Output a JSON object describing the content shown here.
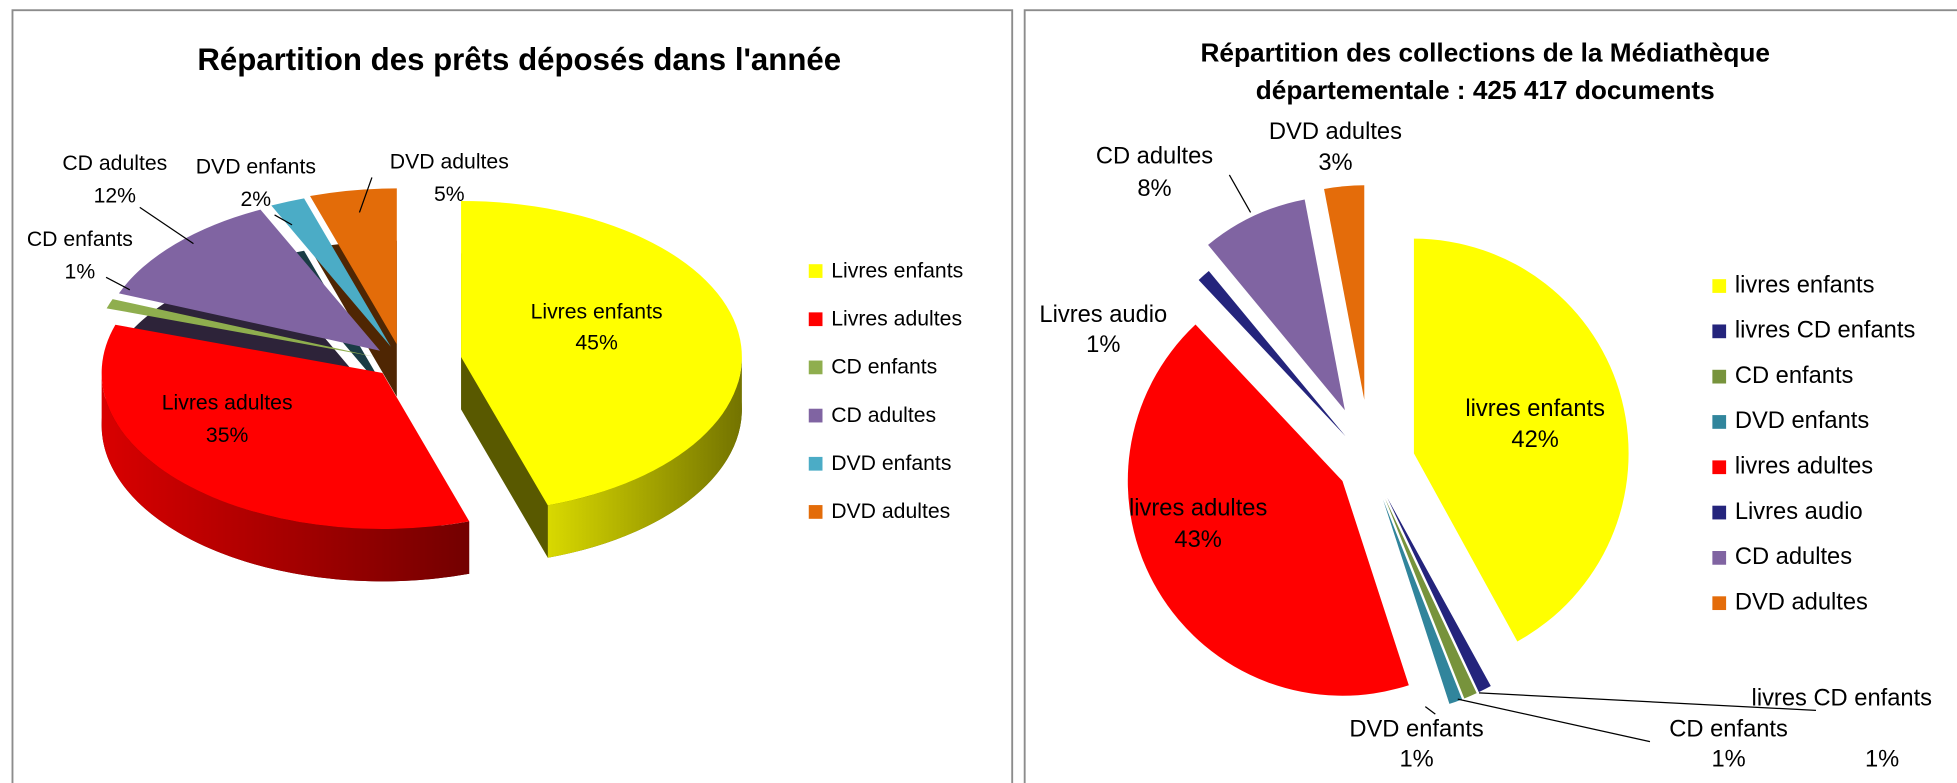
{
  "chart_data": [
    {
      "type": "pie3d",
      "title": "Répartition des prêts déposés dans l'année",
      "categories": [
        "Livres enfants",
        "Livres adultes",
        "CD enfants",
        "CD adultes",
        "DVD enfants",
        "DVD adultes"
      ],
      "values": [
        45,
        35,
        1,
        12,
        2,
        5
      ],
      "value_labels": [
        "45%",
        "35%",
        "1%",
        "12%",
        "2%",
        "5%"
      ],
      "colors": [
        "#ffff00",
        "#ff0000",
        "#8fae4e",
        "#8064a2",
        "#4bacc6",
        "#e36c09"
      ],
      "legend": "right"
    },
    {
      "type": "pie",
      "title": "Répartition des collections de la Médiathèque départementale : 425 417 documents",
      "categories": [
        "livres enfants",
        "livres CD enfants",
        "CD enfants",
        "DVD enfants",
        "livres adultes",
        "Livres audio",
        "CD adultes",
        "DVD adultes"
      ],
      "values": [
        42,
        1,
        1,
        1,
        43,
        1,
        8,
        3
      ],
      "value_labels": [
        "42%",
        "1%",
        "1%",
        "1%",
        "43%",
        "1%",
        "8%",
        "3%"
      ],
      "colors": [
        "#ffff00",
        "#24247c",
        "#77933c",
        "#31859c",
        "#ff0000",
        "#24247c",
        "#8064a2",
        "#e46c0a"
      ],
      "legend": "right"
    }
  ]
}
